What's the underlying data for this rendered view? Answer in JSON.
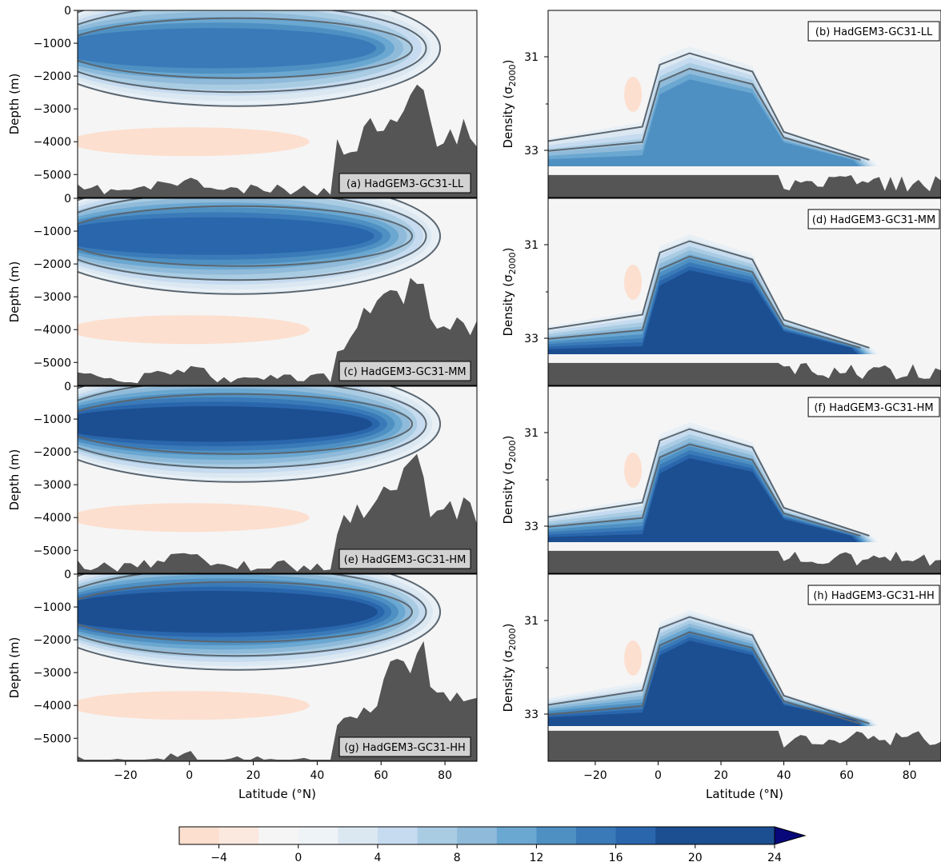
{
  "chart_data": {
    "type": "heatmap",
    "colors": {
      "negative": "#fcdfcf",
      "neutral": "#f5f5f5",
      "blues": [
        "#e8f0f6",
        "#dbe8f2",
        "#c6dbef",
        "#a9cce3",
        "#8fbad9",
        "#6aa7d1",
        "#4f90c3",
        "#3a7ab8",
        "#2a66ac",
        "#1c4f91"
      ],
      "extend": "#08087a",
      "bathymetry": "#555555",
      "contour": "#5a6670"
    },
    "depth_axis": {
      "xlabel": "Latitude (°N)",
      "ylabel": "Depth (m)",
      "xticks": [
        "−20",
        "0",
        "20",
        "40",
        "60",
        "80"
      ],
      "yticks": [
        "0",
        "−1000",
        "−2000",
        "−3000",
        "−4000",
        "−5000"
      ],
      "xlim": [
        -35,
        90
      ],
      "ylim": [
        -5700,
        0
      ]
    },
    "density_axis": {
      "xlabel": "Latitude (°N)",
      "ylabel": "Density (σ",
      "ylabel_sub": "2000",
      "ylabel_close": ")",
      "xticks": [
        "−20",
        "0",
        "20",
        "40",
        "60",
        "80"
      ],
      "yticks": [
        "31",
        "33"
      ]
    },
    "colorbar": {
      "ticks": [
        "−4",
        "0",
        "4",
        "8",
        "12",
        "16",
        "20",
        "24"
      ],
      "levels": [
        -6,
        -4,
        -2,
        0,
        2,
        4,
        6,
        8,
        10,
        12,
        14,
        16,
        18,
        20,
        22,
        24
      ]
    },
    "panels": [
      {
        "label": "(a) HadGEM3-GC31-LL",
        "kind": "depth",
        "max": 16
      },
      {
        "label": "(b) HadGEM3-GC31-LL",
        "kind": "density",
        "max": 14
      },
      {
        "label": "(c) HadGEM3-GC31-MM",
        "kind": "depth",
        "max": 18
      },
      {
        "label": "(d) HadGEM3-GC31-MM",
        "kind": "density",
        "max": 20
      },
      {
        "label": "(e) HadGEM3-GC31-HM",
        "kind": "depth",
        "max": 19
      },
      {
        "label": "(f) HadGEM3-GC31-HM",
        "kind": "density",
        "max": 20
      },
      {
        "label": "(g) HadGEM3-GC31-HH",
        "kind": "depth",
        "max": 22
      },
      {
        "label": "(h) HadGEM3-GC31-HH",
        "kind": "density",
        "max": 24
      }
    ]
  }
}
